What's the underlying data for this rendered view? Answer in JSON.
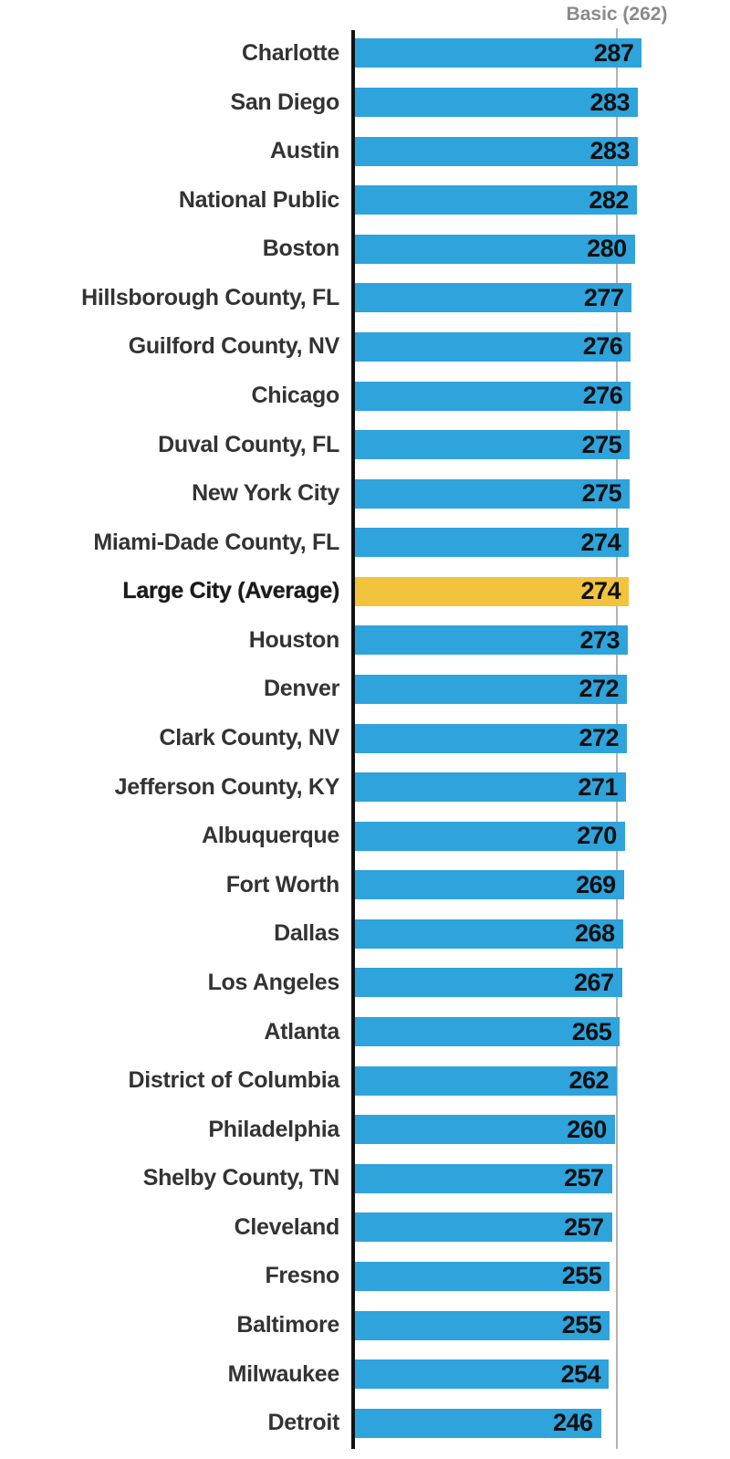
{
  "header": {
    "reference_label": "Basic (262)"
  },
  "chart_data": {
    "type": "bar",
    "orientation": "horizontal",
    "title": "",
    "xlabel": "",
    "ylabel": "",
    "xlim": [
      0,
      375
    ],
    "grid": false,
    "legend": false,
    "reference_line": {
      "label": "Basic (262)",
      "value": 262
    },
    "categories": [
      "Charlotte",
      "San Diego",
      "Austin",
      "National Public",
      "Boston",
      "Hillsborough County, FL",
      "Guilford County, NV",
      "Chicago",
      "Duval County, FL",
      "New York City",
      "Miami-Dade County, FL",
      "Large City (Average)",
      "Houston",
      "Denver",
      "Clark County, NV",
      "Jefferson County, KY",
      "Albuquerque",
      "Fort Worth",
      "Dallas",
      "Los Angeles",
      "Atlanta",
      "District of Columbia",
      "Philadelphia",
      "Shelby County, TN",
      "Cleveland",
      "Fresno",
      "Baltimore",
      "Milwaukee",
      "Detroit"
    ],
    "values": [
      287,
      283,
      283,
      282,
      280,
      277,
      276,
      276,
      275,
      275,
      274,
      274,
      273,
      272,
      272,
      271,
      270,
      269,
      268,
      267,
      265,
      262,
      260,
      257,
      257,
      255,
      255,
      254,
      246
    ],
    "rows": [
      {
        "label": "Charlotte",
        "value": 287,
        "highlight": false
      },
      {
        "label": "San Diego",
        "value": 283,
        "highlight": false
      },
      {
        "label": "Austin",
        "value": 283,
        "highlight": false
      },
      {
        "label": "National Public",
        "value": 282,
        "highlight": false
      },
      {
        "label": "Boston",
        "value": 280,
        "highlight": false
      },
      {
        "label": "Hillsborough County, FL",
        "value": 277,
        "highlight": false
      },
      {
        "label": "Guilford County, NV",
        "value": 276,
        "highlight": false
      },
      {
        "label": "Chicago",
        "value": 276,
        "highlight": false
      },
      {
        "label": "Duval County, FL",
        "value": 275,
        "highlight": false
      },
      {
        "label": "New York City",
        "value": 275,
        "highlight": false
      },
      {
        "label": "Miami-Dade County, FL",
        "value": 274,
        "highlight": false
      },
      {
        "label": "Large City (Average)",
        "value": 274,
        "highlight": true
      },
      {
        "label": "Houston",
        "value": 273,
        "highlight": false
      },
      {
        "label": "Denver",
        "value": 272,
        "highlight": false
      },
      {
        "label": "Clark County, NV",
        "value": 272,
        "highlight": false
      },
      {
        "label": "Jefferson County, KY",
        "value": 271,
        "highlight": false
      },
      {
        "label": "Albuquerque",
        "value": 270,
        "highlight": false
      },
      {
        "label": "Fort Worth",
        "value": 269,
        "highlight": false
      },
      {
        "label": "Dallas",
        "value": 268,
        "highlight": false
      },
      {
        "label": "Los Angeles",
        "value": 267,
        "highlight": false
      },
      {
        "label": "Atlanta",
        "value": 265,
        "highlight": false
      },
      {
        "label": "District of Columbia",
        "value": 262,
        "highlight": false
      },
      {
        "label": "Philadelphia",
        "value": 260,
        "highlight": false
      },
      {
        "label": "Shelby County, TN",
        "value": 257,
        "highlight": false
      },
      {
        "label": "Cleveland",
        "value": 257,
        "highlight": false
      },
      {
        "label": "Fresno",
        "value": 255,
        "highlight": false
      },
      {
        "label": "Baltimore",
        "value": 255,
        "highlight": false
      },
      {
        "label": "Milwaukee",
        "value": 254,
        "highlight": false
      },
      {
        "label": "Detroit",
        "value": 246,
        "highlight": false
      }
    ],
    "colors": {
      "bar": "#2EA3DC",
      "highlight": "#F2C33D",
      "axis": "#111111",
      "reference_line": "#b3b3b3",
      "reference_text": "#8a8a8a",
      "label_text": "#333333",
      "value_text": "#101010"
    }
  }
}
